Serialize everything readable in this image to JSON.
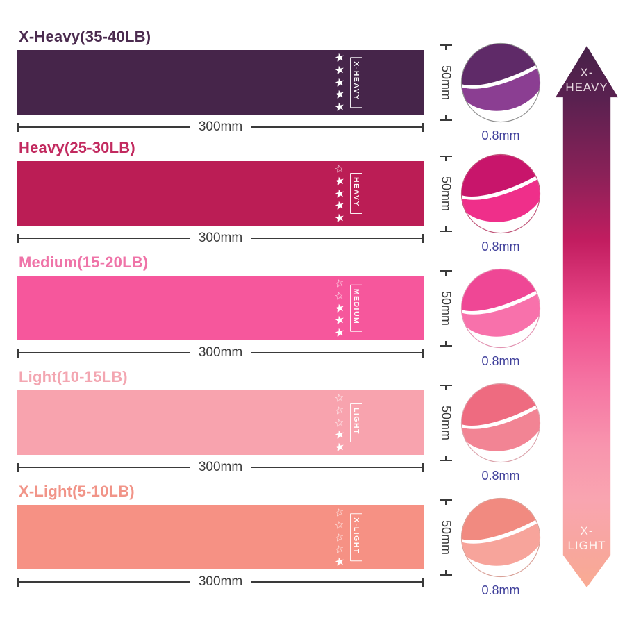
{
  "dimensions": {
    "length": "300mm",
    "height": "50mm",
    "thickness": "0.8mm"
  },
  "colors": {
    "background": "#ffffff",
    "dimension_line": "#3a3a3a",
    "thickness_text": "#3e3e9a"
  },
  "bands": [
    {
      "title": "X-Heavy(35-40LB)",
      "label": "X-HEAVY",
      "stars": [
        "filled",
        "filled",
        "filled",
        "filled",
        "filled"
      ],
      "band_color": "#46254a",
      "title_color": "#4b2b4f",
      "swatch": {
        "top": "#5f2a68",
        "bottom": "#8b3e92",
        "border": "#8f8f8f"
      }
    },
    {
      "title": "Heavy(25-30LB)",
      "label": "HEAVY",
      "stars": [
        "outline",
        "filled",
        "filled",
        "filled",
        "filled"
      ],
      "band_color": "#bb1d55",
      "title_color": "#c22a5f",
      "swatch": {
        "top": "#c8156b",
        "bottom": "#ef2f8a",
        "border": "#c05579"
      }
    },
    {
      "title": "Medium(15-20LB)",
      "label": "MEDIUM",
      "stars": [
        "outline",
        "outline",
        "filled",
        "filled",
        "filled"
      ],
      "band_color": "#f6579c",
      "title_color": "#ef74a8",
      "swatch": {
        "top": "#ef4795",
        "bottom": "#f871ab",
        "border": "#e294b2"
      }
    },
    {
      "title": "Light(10-15LB)",
      "label": "LIGHT",
      "stars": [
        "outline",
        "outline",
        "outline",
        "filled",
        "filled"
      ],
      "band_color": "#f8a3ae",
      "title_color": "#f3a6b1",
      "swatch": {
        "top": "#ee6b80",
        "bottom": "#f28494",
        "border": "#dba3ab"
      }
    },
    {
      "title": "X-Light(5-10LB)",
      "label": "X-LIGHT",
      "stars": [
        "outline",
        "outline",
        "outline",
        "outline",
        "filled"
      ],
      "band_color": "#f69184",
      "title_color": "#f19488",
      "swatch": {
        "top": "#f18a80",
        "bottom": "#f7a49b",
        "border": "#d9a198"
      }
    }
  ],
  "scale_arrow": {
    "top_line1": "X-",
    "top_line2": "HEAVY",
    "bottom_line1": "X-",
    "bottom_line2": "LIGHT",
    "gradient": [
      "#472149 0%",
      "#5a2150 10%",
      "#8b2158 24%",
      "#c21d60 36%",
      "#ee4c8c 50%",
      "#f573a2 62%",
      "#f895ae 74%",
      "#f9a5b0 84%",
      "#f8a79c 94%",
      "#f9ab93 100%"
    ]
  }
}
